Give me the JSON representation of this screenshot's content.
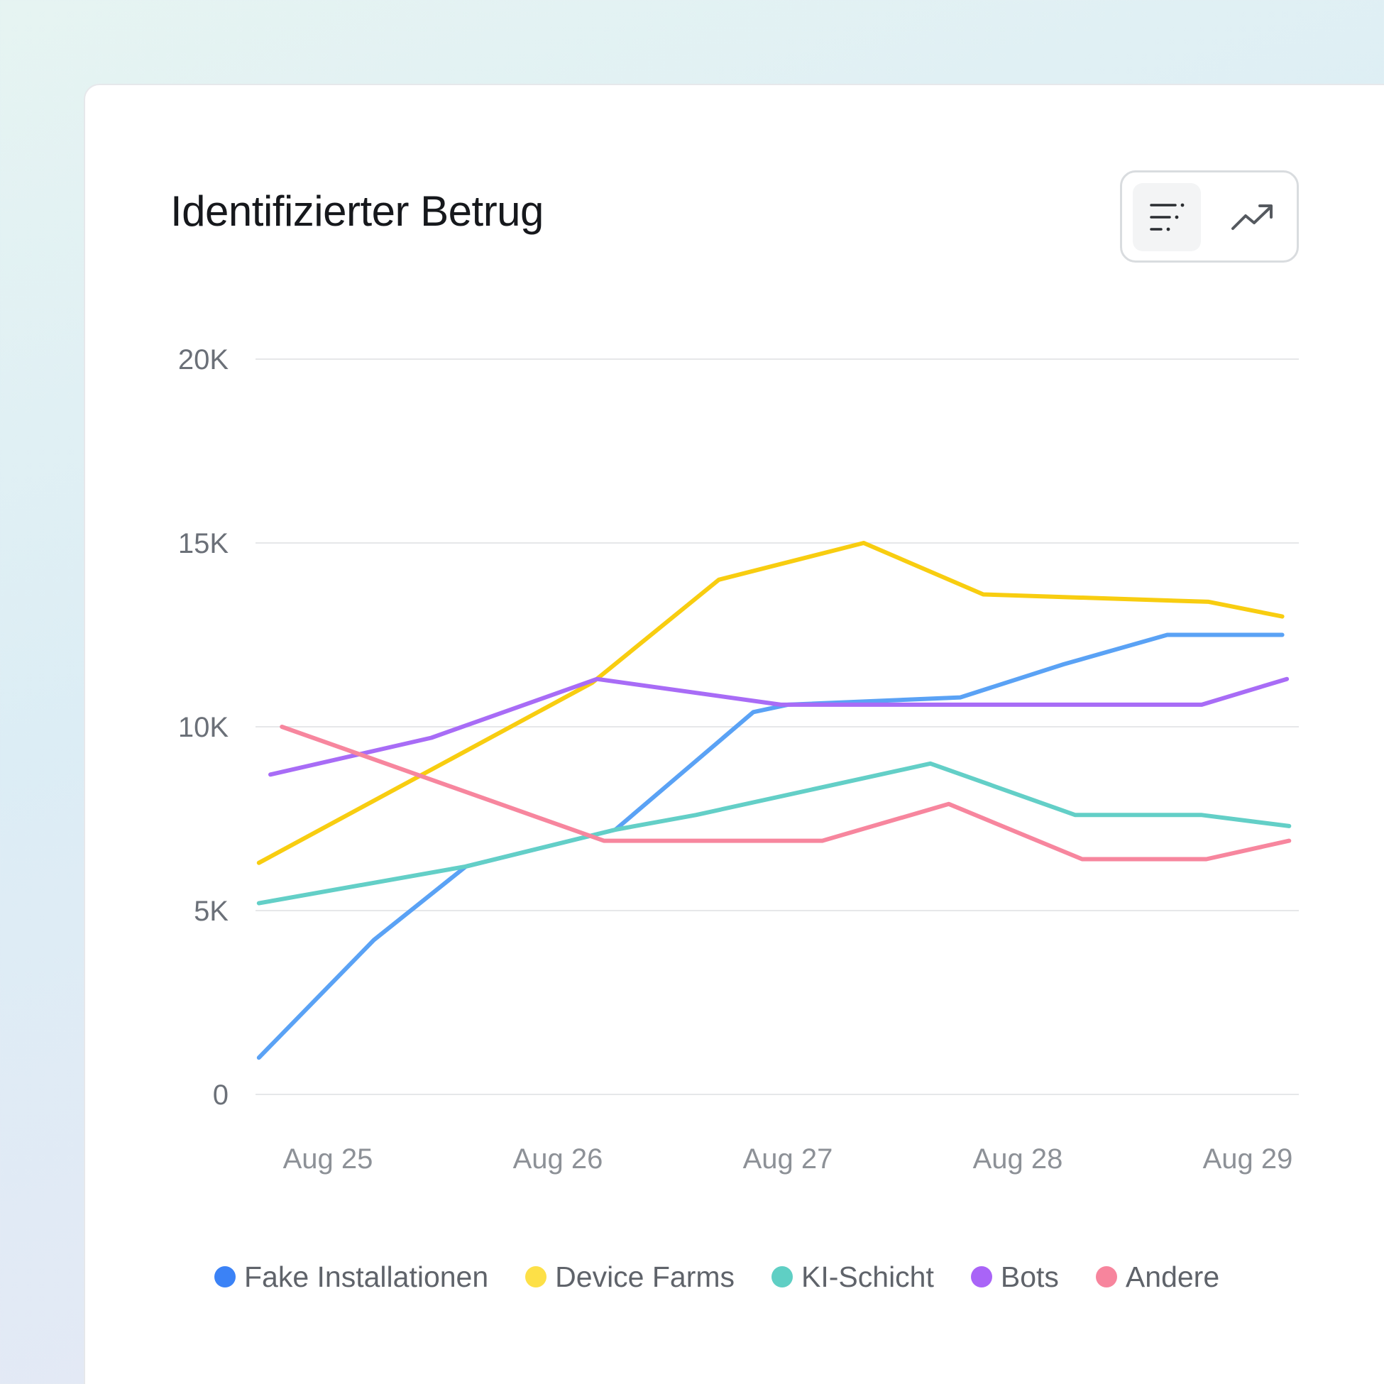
{
  "card": {
    "title": "Identifizierter Betrug"
  },
  "view_toggle": {
    "icons": [
      "bar-list-icon",
      "trend-line-icon"
    ],
    "active": "bar-list-icon"
  },
  "colors": {
    "fake_installationen": "#5aa2f5",
    "device_farms": "#f8cd10",
    "ki_schicht": "#63cfc7",
    "bots": "#a86cf6",
    "andere": "#f7869e",
    "legend_dots": [
      "#3b82f6",
      "#fde047",
      "#5fcfc4",
      "#a964f7",
      "#f7859d"
    ],
    "gridline": "#e6e7e9",
    "axis_text": "#6b7078"
  },
  "chart_data": {
    "type": "line",
    "title": "Identifizierter Betrug",
    "x_ticks": [
      "Aug 25",
      "Aug 26",
      "Aug 27",
      "Aug 28",
      "Aug 29"
    ],
    "y_ticks": [
      "0",
      "5K",
      "10K",
      "15K",
      "20K"
    ],
    "ylim": [
      0,
      20000
    ],
    "grid": true,
    "legend_position": "bottom",
    "series": [
      {
        "name": "Fake Installationen",
        "color": "#5aa2f5",
        "x": [
          24.7,
          25.2,
          25.6,
          26.25,
          26.85,
          27.0,
          27.75,
          28.2,
          28.65,
          29.15
        ],
        "y": [
          1000,
          4200,
          6200,
          7200,
          10400,
          10600,
          10800,
          11700,
          12500,
          12500
        ]
      },
      {
        "name": "Device Farms",
        "color": "#f8cd10",
        "x": [
          24.7,
          26.15,
          26.7,
          27.33,
          27.85,
          28.83,
          29.15
        ],
        "y": [
          6300,
          11200,
          14000,
          15000,
          13600,
          13400,
          13000
        ]
      },
      {
        "name": "KI-Schicht",
        "color": "#63cfc7",
        "x": [
          24.7,
          25.6,
          26.25,
          26.6,
          27.62,
          28.25,
          28.8,
          29.18
        ],
        "y": [
          5200,
          6200,
          7200,
          7600,
          9000,
          7600,
          7600,
          7300
        ]
      },
      {
        "name": "Bots",
        "color": "#a86cf6",
        "x": [
          24.75,
          25.45,
          26.17,
          26.97,
          27.4,
          28.8,
          29.17
        ],
        "y": [
          8700,
          9700,
          11300,
          10600,
          10600,
          10600,
          11300
        ]
      },
      {
        "name": "Andere",
        "color": "#f7869e",
        "x": [
          24.8,
          26.2,
          26.57,
          27.15,
          27.7,
          28.28,
          28.82,
          29.18
        ],
        "y": [
          10000,
          6900,
          6900,
          6900,
          7900,
          6400,
          6400,
          6900
        ]
      }
    ]
  }
}
